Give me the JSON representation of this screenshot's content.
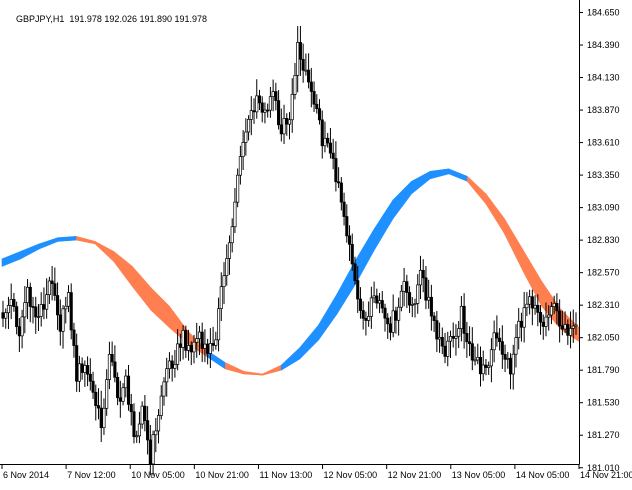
{
  "header": {
    "symbol": "GBPJPY,H1",
    "ohlc": "191.978 192.026 191.890 191.978"
  },
  "chart_data": {
    "type": "candlestick",
    "ylim": [
      181.04,
      184.75
    ],
    "y_ticks": [
      "184.650",
      "184.390",
      "184.130",
      "183.870",
      "183.610",
      "183.350",
      "183.090",
      "182.830",
      "182.570",
      "182.310",
      "182.050",
      "181.790",
      "181.530",
      "181.270",
      "181.010"
    ],
    "x_ticks": [
      "6 Nov 2014",
      "7 Nov 12:00",
      "10 Nov 05:00",
      "10 Nov 21:00",
      "11 Nov 13:00",
      "12 Nov 05:00",
      "12 Nov 21:00",
      "13 Nov 05:00",
      "14 Nov 05:00",
      "14 Nov 21:00"
    ],
    "price_close": [
      182.25,
      182.35,
      182.1,
      182.45,
      182.2,
      182.3,
      182.55,
      182.15,
      182.35,
      181.75,
      181.85,
      181.6,
      181.35,
      181.95,
      181.55,
      181.7,
      181.25,
      181.5,
      181.1,
      181.45,
      181.8,
      181.9,
      182.05,
      181.95,
      182.1,
      181.9,
      182.1,
      182.55,
      182.9,
      183.55,
      183.75,
      184.0,
      183.85,
      184.05,
      183.7,
      183.85,
      184.35,
      184.2,
      183.9,
      183.65,
      183.5,
      183.3,
      182.9,
      182.55,
      182.15,
      182.3,
      182.35,
      182.1,
      182.25,
      182.5,
      182.3,
      182.55,
      182.35,
      182.1,
      181.95,
      182.05,
      182.25,
      181.95,
      181.85,
      181.75,
      182.05,
      181.95,
      181.8,
      182.15,
      182.3,
      182.35,
      182.15,
      182.3,
      182.2,
      182.05,
      182.1
    ],
    "series": [
      {
        "name": "Band",
        "color_up": "#1e90ff",
        "color_down": "#ff7f50",
        "upper": [
          182.68,
          182.74,
          182.8,
          182.85,
          182.86,
          182.82,
          182.74,
          182.62,
          182.45,
          182.3,
          182.1,
          181.95,
          181.85,
          181.78,
          181.76,
          181.83,
          181.97,
          182.15,
          182.4,
          182.67,
          182.92,
          183.15,
          183.3,
          183.38,
          183.4,
          183.34,
          183.2,
          183.0,
          182.75,
          182.5,
          182.28,
          182.13
        ],
        "lower": [
          182.62,
          182.68,
          182.76,
          182.82,
          182.83,
          182.8,
          182.66,
          182.46,
          182.27,
          182.13,
          182.0,
          181.9,
          181.8,
          181.76,
          181.75,
          181.79,
          181.88,
          182.03,
          182.24,
          182.48,
          182.75,
          183.0,
          183.2,
          183.32,
          183.36,
          183.3,
          183.12,
          182.88,
          182.58,
          182.3,
          182.12,
          182.02
        ],
        "trend": [
          "up",
          "up",
          "up",
          "up",
          "down",
          "down",
          "down",
          "down",
          "down",
          "down",
          "down",
          "up",
          "down",
          "down",
          "down",
          "up",
          "up",
          "up",
          "up",
          "up",
          "up",
          "up",
          "up",
          "up",
          "up",
          "down",
          "down",
          "down",
          "down",
          "down",
          "down",
          "down"
        ]
      }
    ]
  }
}
